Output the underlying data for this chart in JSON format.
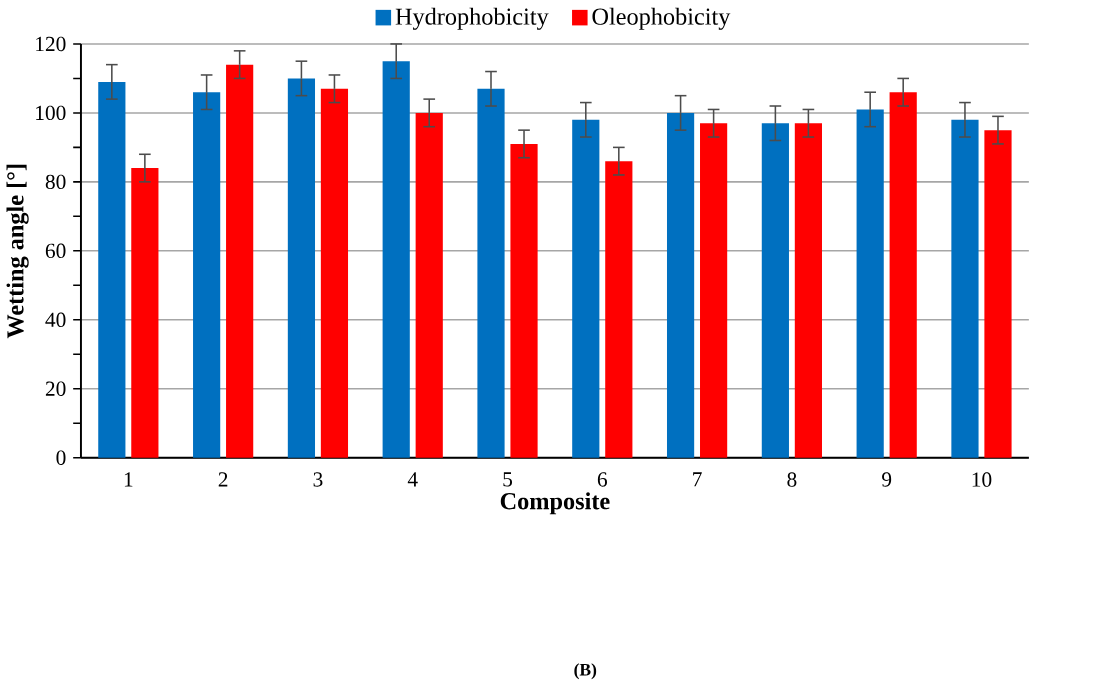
{
  "chart_data": {
    "type": "bar",
    "xlabel": "Composite",
    "ylabel": "Wetting angle [°]",
    "categories": [
      "1",
      "2",
      "3",
      "4",
      "5",
      "6",
      "7",
      "8",
      "9",
      "10"
    ],
    "series": [
      {
        "name": "Hydrophobicity",
        "color": "#0070c0",
        "values": [
          109,
          106,
          110,
          115,
          107,
          98,
          100,
          97,
          101,
          98
        ],
        "errors": [
          5,
          5,
          5,
          5,
          5,
          5,
          5,
          5,
          5,
          5
        ]
      },
      {
        "name": "Oleophobicity",
        "color": "#ff0000",
        "values": [
          84,
          114,
          107,
          100,
          91,
          86,
          97,
          97,
          106,
          95
        ],
        "errors": [
          4,
          4,
          4,
          4,
          4,
          4,
          4,
          4,
          4,
          4
        ]
      }
    ],
    "ylim": [
      0,
      120
    ],
    "yticks": [
      0,
      {
        "value": 10,
        "label": null
      },
      20,
      {
        "value": 30,
        "label": null
      },
      40,
      {
        "value": 50,
        "label": null
      },
      60,
      {
        "value": 70,
        "label": null
      },
      80,
      {
        "value": 90,
        "label": null
      },
      100,
      {
        "value": 110,
        "label": null
      },
      120
    ],
    "grid": "y",
    "legend": "top",
    "annotations": [
      "(B)"
    ]
  }
}
